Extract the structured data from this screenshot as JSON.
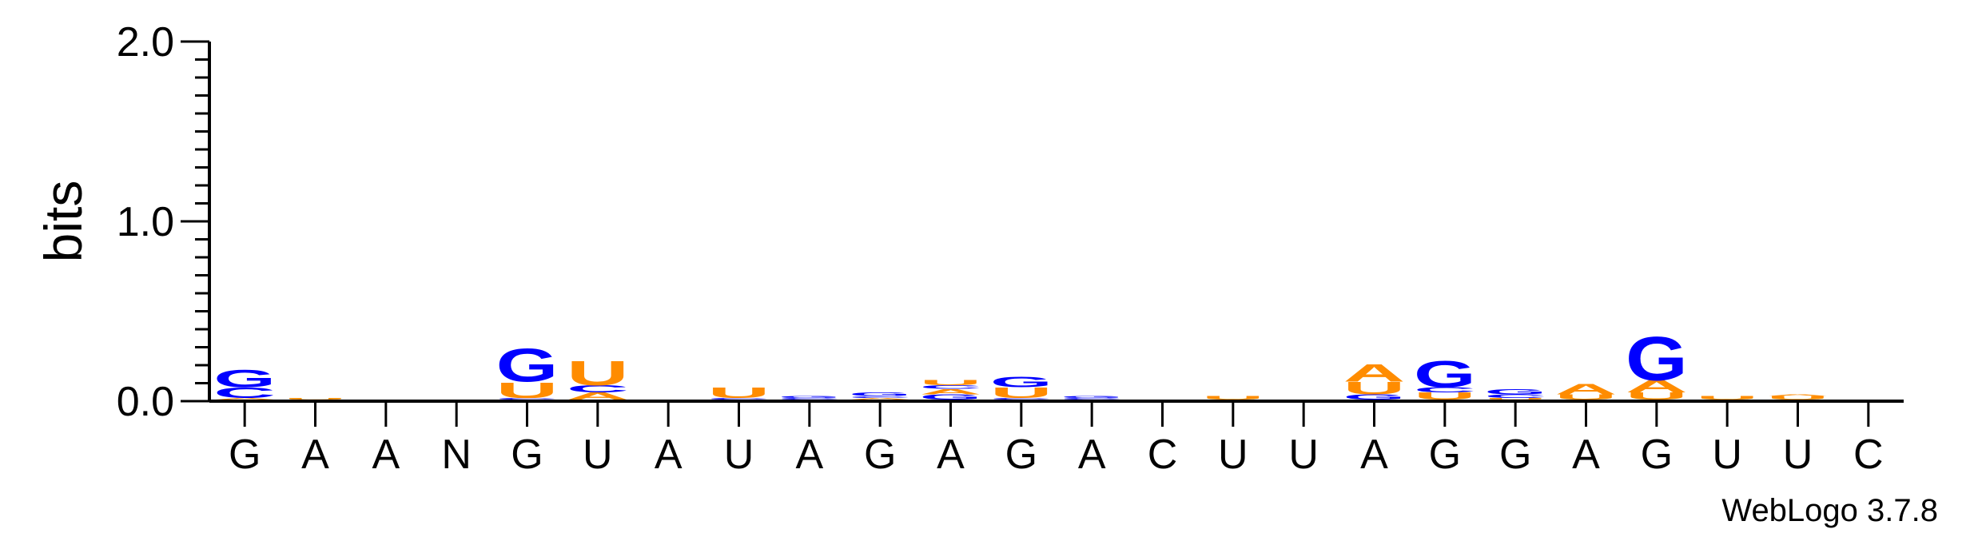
{
  "chart_data": {
    "type": "sequence-logo",
    "ylabel": "bits",
    "ylim": [
      0,
      2.0
    ],
    "yticks": [
      "0.0",
      "1.0",
      "2.0"
    ],
    "y_minor_step": 0.1,
    "colors": {
      "G": "#0000ff",
      "U": "#ff8c00",
      "A": "#ff8c00",
      "C": "#0000ff"
    },
    "positions": [
      {
        "label": "G",
        "stack": [
          {
            "letter": "A",
            "bits": 0.01
          },
          {
            "letter": "C",
            "bits": 0.06
          },
          {
            "letter": "G",
            "bits": 0.1
          }
        ]
      },
      {
        "label": "A",
        "stack": [
          {
            "letter": "U",
            "bits": 0.01
          }
        ]
      },
      {
        "label": "A",
        "stack": []
      },
      {
        "label": "N",
        "stack": []
      },
      {
        "label": "G",
        "stack": [
          {
            "letter": "C",
            "bits": 0.01
          },
          {
            "letter": "U",
            "bits": 0.09
          },
          {
            "letter": "G",
            "bits": 0.19
          }
        ]
      },
      {
        "label": "U",
        "stack": [
          {
            "letter": "A",
            "bits": 0.04
          },
          {
            "letter": "C",
            "bits": 0.04
          },
          {
            "letter": "U",
            "bits": 0.14
          }
        ]
      },
      {
        "label": "A",
        "stack": []
      },
      {
        "label": "U",
        "stack": [
          {
            "letter": "C",
            "bits": 0.01
          },
          {
            "letter": "U",
            "bits": 0.06
          }
        ]
      },
      {
        "label": "A",
        "stack": [
          {
            "letter": "C",
            "bits": 0.01
          },
          {
            "letter": "G",
            "bits": 0.01
          }
        ]
      },
      {
        "label": "G",
        "stack": [
          {
            "letter": "A",
            "bits": 0.01
          },
          {
            "letter": "C",
            "bits": 0.01
          },
          {
            "letter": "G",
            "bits": 0.02
          }
        ]
      },
      {
        "label": "A",
        "stack": [
          {
            "letter": "G",
            "bits": 0.03
          },
          {
            "letter": "A",
            "bits": 0.03
          },
          {
            "letter": "C",
            "bits": 0.02
          },
          {
            "letter": "U",
            "bits": 0.03
          }
        ]
      },
      {
        "label": "G",
        "stack": [
          {
            "letter": "C",
            "bits": 0.01
          },
          {
            "letter": "U",
            "bits": 0.06
          },
          {
            "letter": "G",
            "bits": 0.06
          }
        ]
      },
      {
        "label": "A",
        "stack": [
          {
            "letter": "C",
            "bits": 0.01
          },
          {
            "letter": "G",
            "bits": 0.01
          }
        ]
      },
      {
        "label": "C",
        "stack": []
      },
      {
        "label": "U",
        "stack": [
          {
            "letter": "U",
            "bits": 0.02
          }
        ]
      },
      {
        "label": "U",
        "stack": []
      },
      {
        "label": "A",
        "stack": [
          {
            "letter": "G",
            "bits": 0.03
          },
          {
            "letter": "U",
            "bits": 0.07
          },
          {
            "letter": "A",
            "bits": 0.1
          }
        ]
      },
      {
        "label": "G",
        "stack": [
          {
            "letter": "U",
            "bits": 0.04
          },
          {
            "letter": "C",
            "bits": 0.03
          },
          {
            "letter": "G",
            "bits": 0.15
          }
        ]
      },
      {
        "label": "G",
        "stack": [
          {
            "letter": "U",
            "bits": 0.01
          },
          {
            "letter": "C",
            "bits": 0.02
          },
          {
            "letter": "G",
            "bits": 0.03
          }
        ]
      },
      {
        "label": "A",
        "stack": [
          {
            "letter": "U",
            "bits": 0.03
          },
          {
            "letter": "A",
            "bits": 0.06
          }
        ]
      },
      {
        "label": "G",
        "stack": [
          {
            "letter": "U",
            "bits": 0.04
          },
          {
            "letter": "A",
            "bits": 0.07
          },
          {
            "letter": "G",
            "bits": 0.25
          }
        ]
      },
      {
        "label": "U",
        "stack": [
          {
            "letter": "U",
            "bits": 0.02
          }
        ]
      },
      {
        "label": "U",
        "stack": [
          {
            "letter": "U",
            "bits": 0.02
          },
          {
            "letter": "A",
            "bits": 0.01
          }
        ]
      },
      {
        "label": "C",
        "stack": []
      }
    ]
  },
  "credit": "WebLogo 3.7.8"
}
